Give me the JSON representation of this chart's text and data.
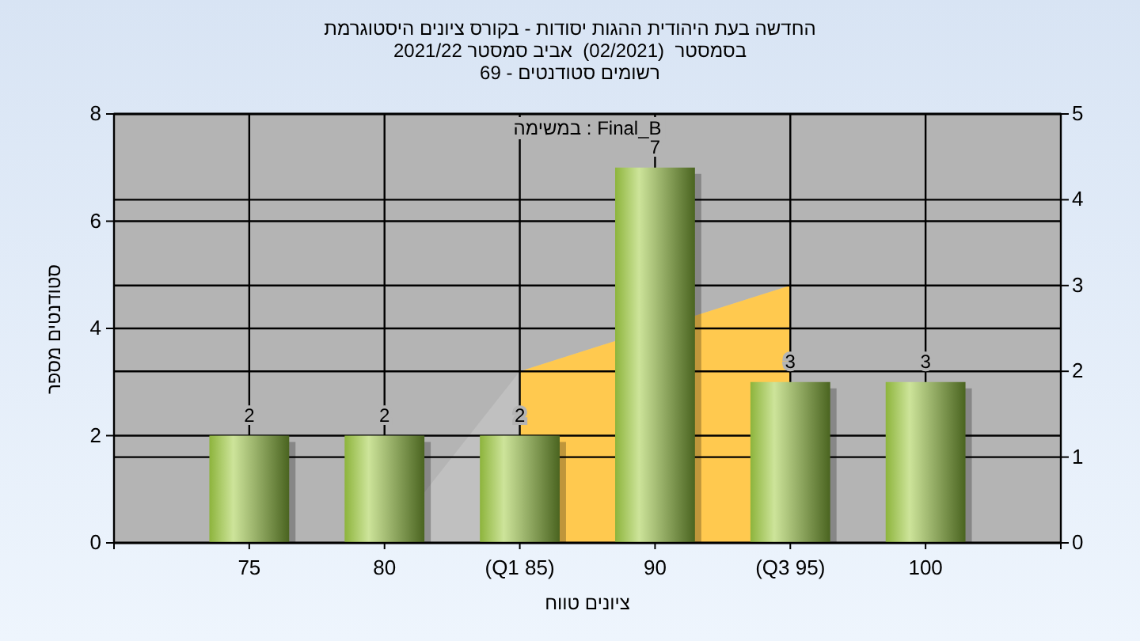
{
  "chart_data": {
    "type": "bar",
    "title": "היסטוגרמת ציונים בקורס - יסודות ההגות היהודית בעת החדשה",
    "subtitle": "2021/22 סמסטר אביב  (02/2021)  בסמסטר\n69 - סטודנטים רשומים",
    "xlabel": "טווח ציונים",
    "ylabel": "מספר סטודנטים",
    "annotations": [
      "במשימה : Final_B"
    ],
    "categories": [
      "75",
      "80",
      "(Q1 85)",
      "90",
      "(Q3 95)",
      "100"
    ],
    "series": [
      {
        "type": "area",
        "axis": "y2",
        "color": "#c0c0c0",
        "values": [
          null,
          0,
          2,
          null,
          3,
          null
        ]
      },
      {
        "type": "area",
        "axis": "y2",
        "color": "#ffc94f",
        "values": [
          null,
          null,
          2,
          null,
          3,
          null
        ]
      },
      {
        "color": "#8db43c",
        "values": [
          2,
          2,
          2,
          7,
          3,
          3
        ],
        "value_labels": [
          "2",
          "2",
          "2",
          "7",
          "3",
          "3"
        ]
      }
    ],
    "ylim": [
      0,
      8
    ],
    "yticks": [
      0,
      2,
      4,
      6,
      8
    ],
    "y2lim": [
      0,
      5
    ],
    "y2ticks": [
      0,
      1,
      2,
      3,
      4,
      5
    ],
    "grid": true
  }
}
